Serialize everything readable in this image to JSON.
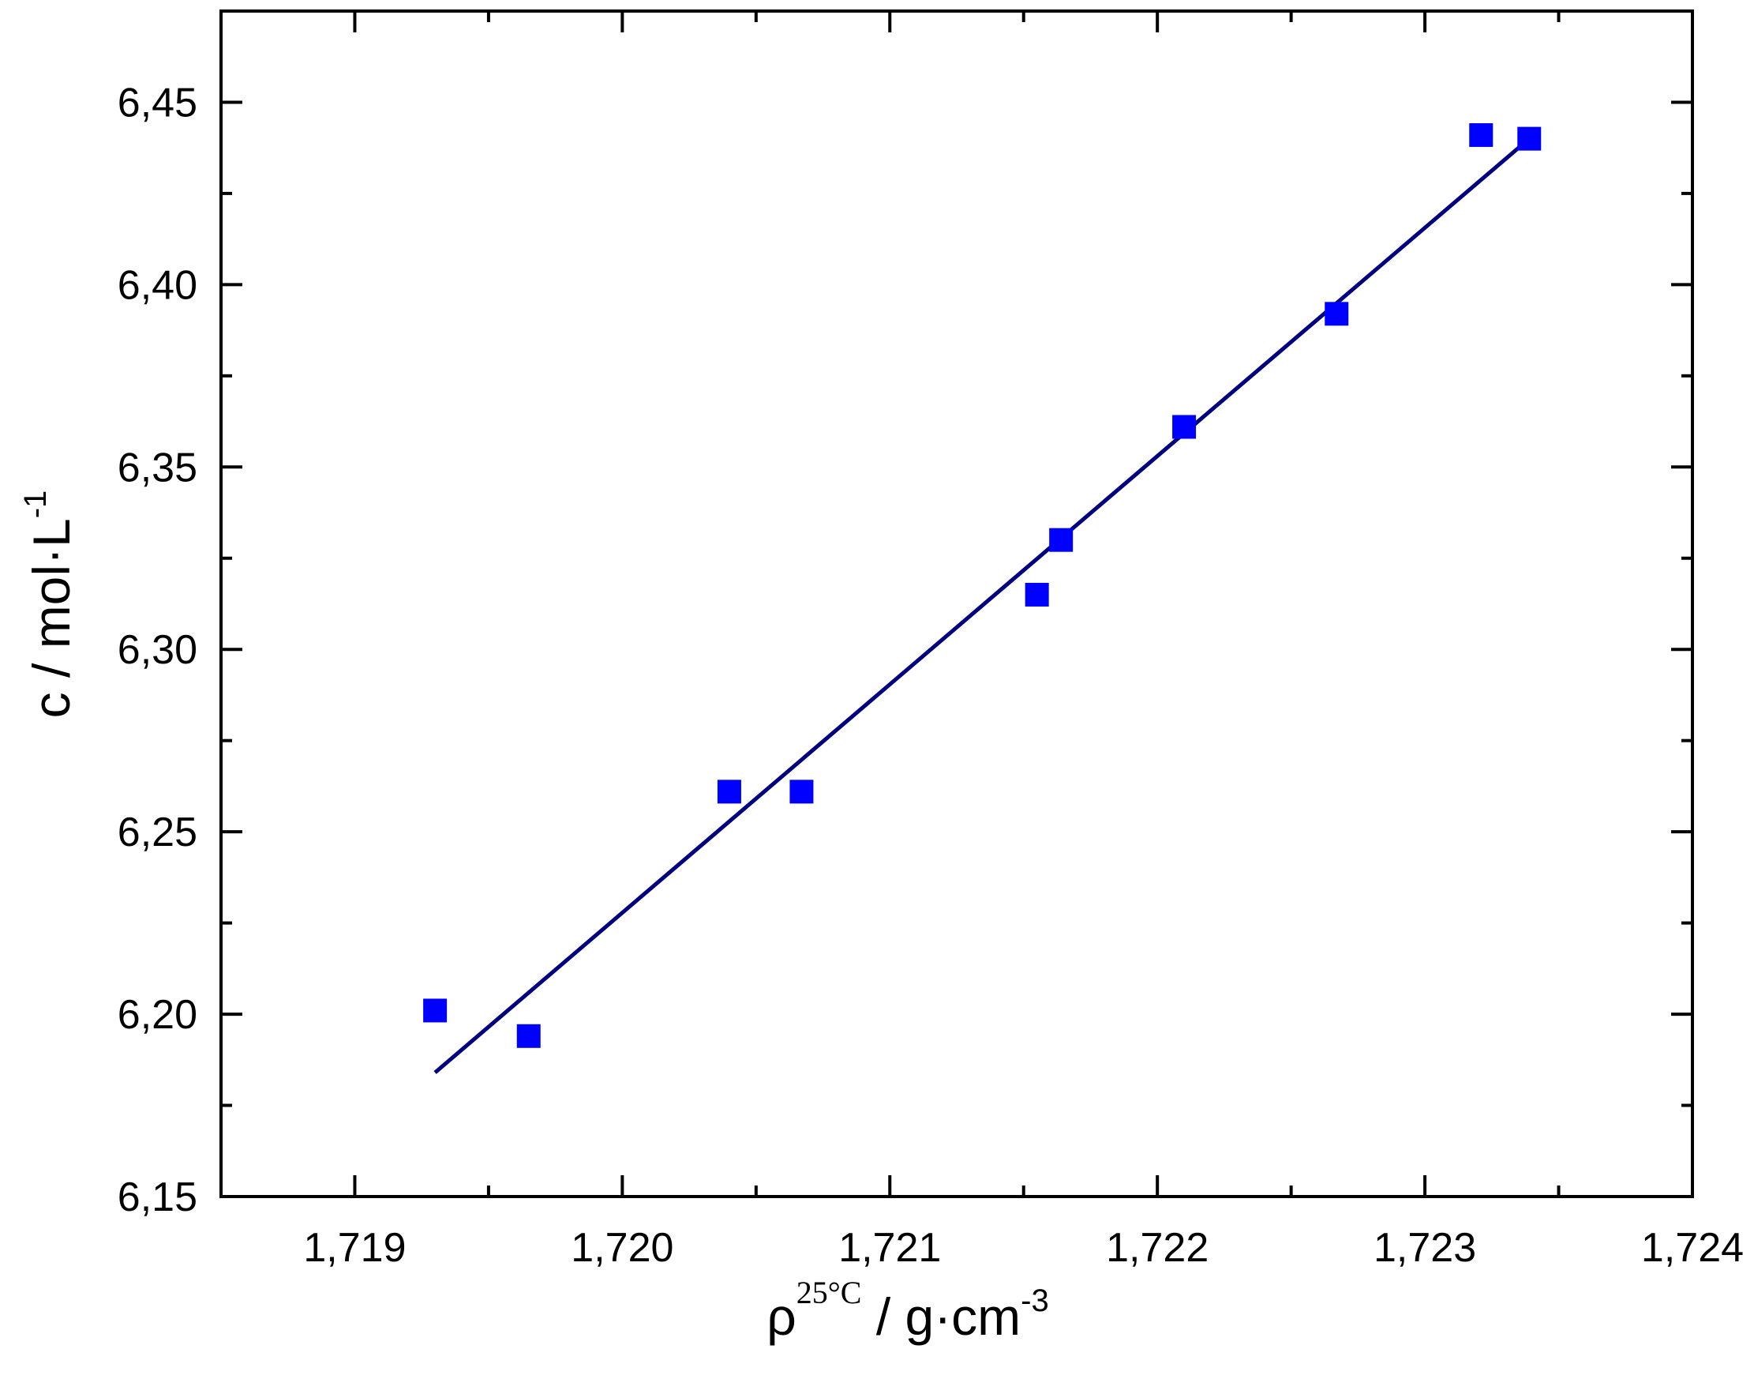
{
  "chart_data": {
    "type": "scatter",
    "xlabel": {
      "main": "ρ",
      "sup": "25°C",
      "rest": " / g·cm",
      "rest_sup": "-3"
    },
    "ylabel": {
      "main": "c / mol·L",
      "sup": "-1"
    },
    "xlim": [
      1.7185,
      1.724
    ],
    "ylim": [
      6.15,
      6.475
    ],
    "x_ticks": [
      1.719,
      1.72,
      1.721,
      1.722,
      1.723,
      1.724
    ],
    "x_tick_labels": [
      "1,719",
      "1,720",
      "1,721",
      "1,722",
      "1,723",
      "1,724"
    ],
    "x_minor_ticks": [
      1.7195,
      1.7205,
      1.7215,
      1.7225,
      1.7235
    ],
    "y_ticks": [
      6.15,
      6.2,
      6.25,
      6.3,
      6.35,
      6.4,
      6.45
    ],
    "y_tick_labels": [
      "6,15",
      "6,20",
      "6,25",
      "6,30",
      "6,35",
      "6,40",
      "6,45"
    ],
    "y_minor_ticks": [
      6.175,
      6.225,
      6.275,
      6.325,
      6.375,
      6.425
    ],
    "grid": false,
    "series": [
      {
        "kind": "points",
        "marker": "square",
        "color": "#0000ff",
        "x": [
          1.7193,
          1.71965,
          1.7204,
          1.72067,
          1.72155,
          1.72164,
          1.7221,
          1.72267,
          1.72321,
          1.72339
        ],
        "y": [
          6.201,
          6.194,
          6.261,
          6.261,
          6.315,
          6.33,
          6.361,
          6.392,
          6.441,
          6.44
        ]
      },
      {
        "kind": "fit-line",
        "color": "#000080",
        "x": [
          1.7193,
          1.72339
        ],
        "y": [
          6.184,
          6.44
        ]
      }
    ]
  }
}
